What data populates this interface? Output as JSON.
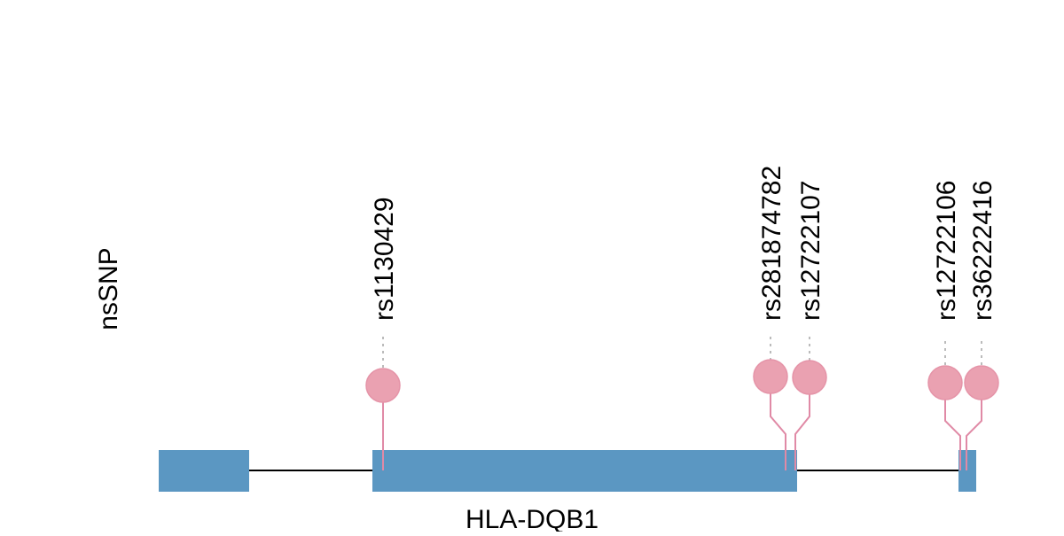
{
  "track_label": "nsSNP",
  "gene": {
    "name": "HLA-DQB1"
  },
  "snps": [
    {
      "label": "rs1130429"
    },
    {
      "label": "rs281874782"
    },
    {
      "label": "rs12722107"
    },
    {
      "label": "rs12722106"
    },
    {
      "label": "rs36222416"
    }
  ]
}
